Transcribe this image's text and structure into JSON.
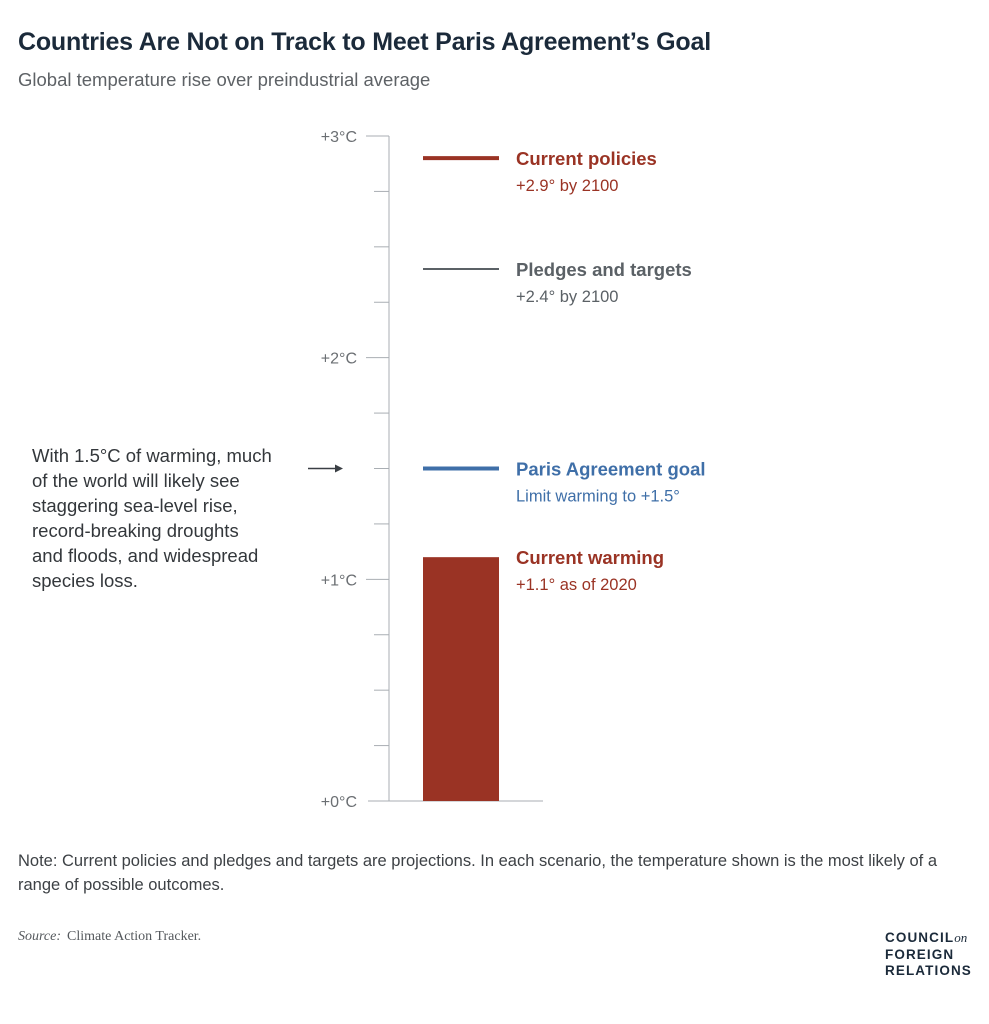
{
  "header": {
    "title": "Countries Are Not on Track to Meet Paris Agreement’s Goal",
    "subtitle": "Global temperature rise over preindustrial average"
  },
  "chart_data": {
    "type": "bar",
    "ylim": [
      0,
      3
    ],
    "unit": "°C",
    "y_ticks": [
      {
        "value": 0,
        "label": "+0°C"
      },
      {
        "value": 1,
        "label": "+1°C"
      },
      {
        "value": 2,
        "label": "+2°C"
      },
      {
        "value": 3,
        "label": "+3°C"
      }
    ],
    "minor_tick_step": 0.25,
    "bar": {
      "name": "Current warming",
      "value": 1.1,
      "detail": "+1.1° as of 2020",
      "color": "#9a3324"
    },
    "reference_lines": [
      {
        "name": "Current policies",
        "value": 2.9,
        "detail": "+2.9° by 2100",
        "color": "#9a3324",
        "weight": "thick"
      },
      {
        "name": "Pledges and targets",
        "value": 2.4,
        "detail": "+2.4° by 2100",
        "color": "#5b6166",
        "weight": "thin"
      },
      {
        "name": "Paris Agreement goal",
        "value": 1.5,
        "detail": "Limit warming to +1.5°",
        "color": "#3f6fa8",
        "weight": "thick"
      }
    ],
    "annotation": {
      "value": 1.5,
      "lines": [
        "With 1.5°C of warming, much",
        "of the world will likely see",
        "staggering sea-level rise,",
        "record-breaking droughts",
        "and floods, and widespread",
        "species loss."
      ]
    }
  },
  "footer": {
    "note": "Note: Current policies and pledges and targets are projections. In each scenario, the temperature shown is the most likely of a range of possible outcomes.",
    "source_label": "Source:",
    "source_text": "Climate Action Tracker.",
    "logo_line1": "COUNCIL",
    "logo_on": "on",
    "logo_line2": "FOREIGN",
    "logo_line3": "RELATIONS"
  }
}
